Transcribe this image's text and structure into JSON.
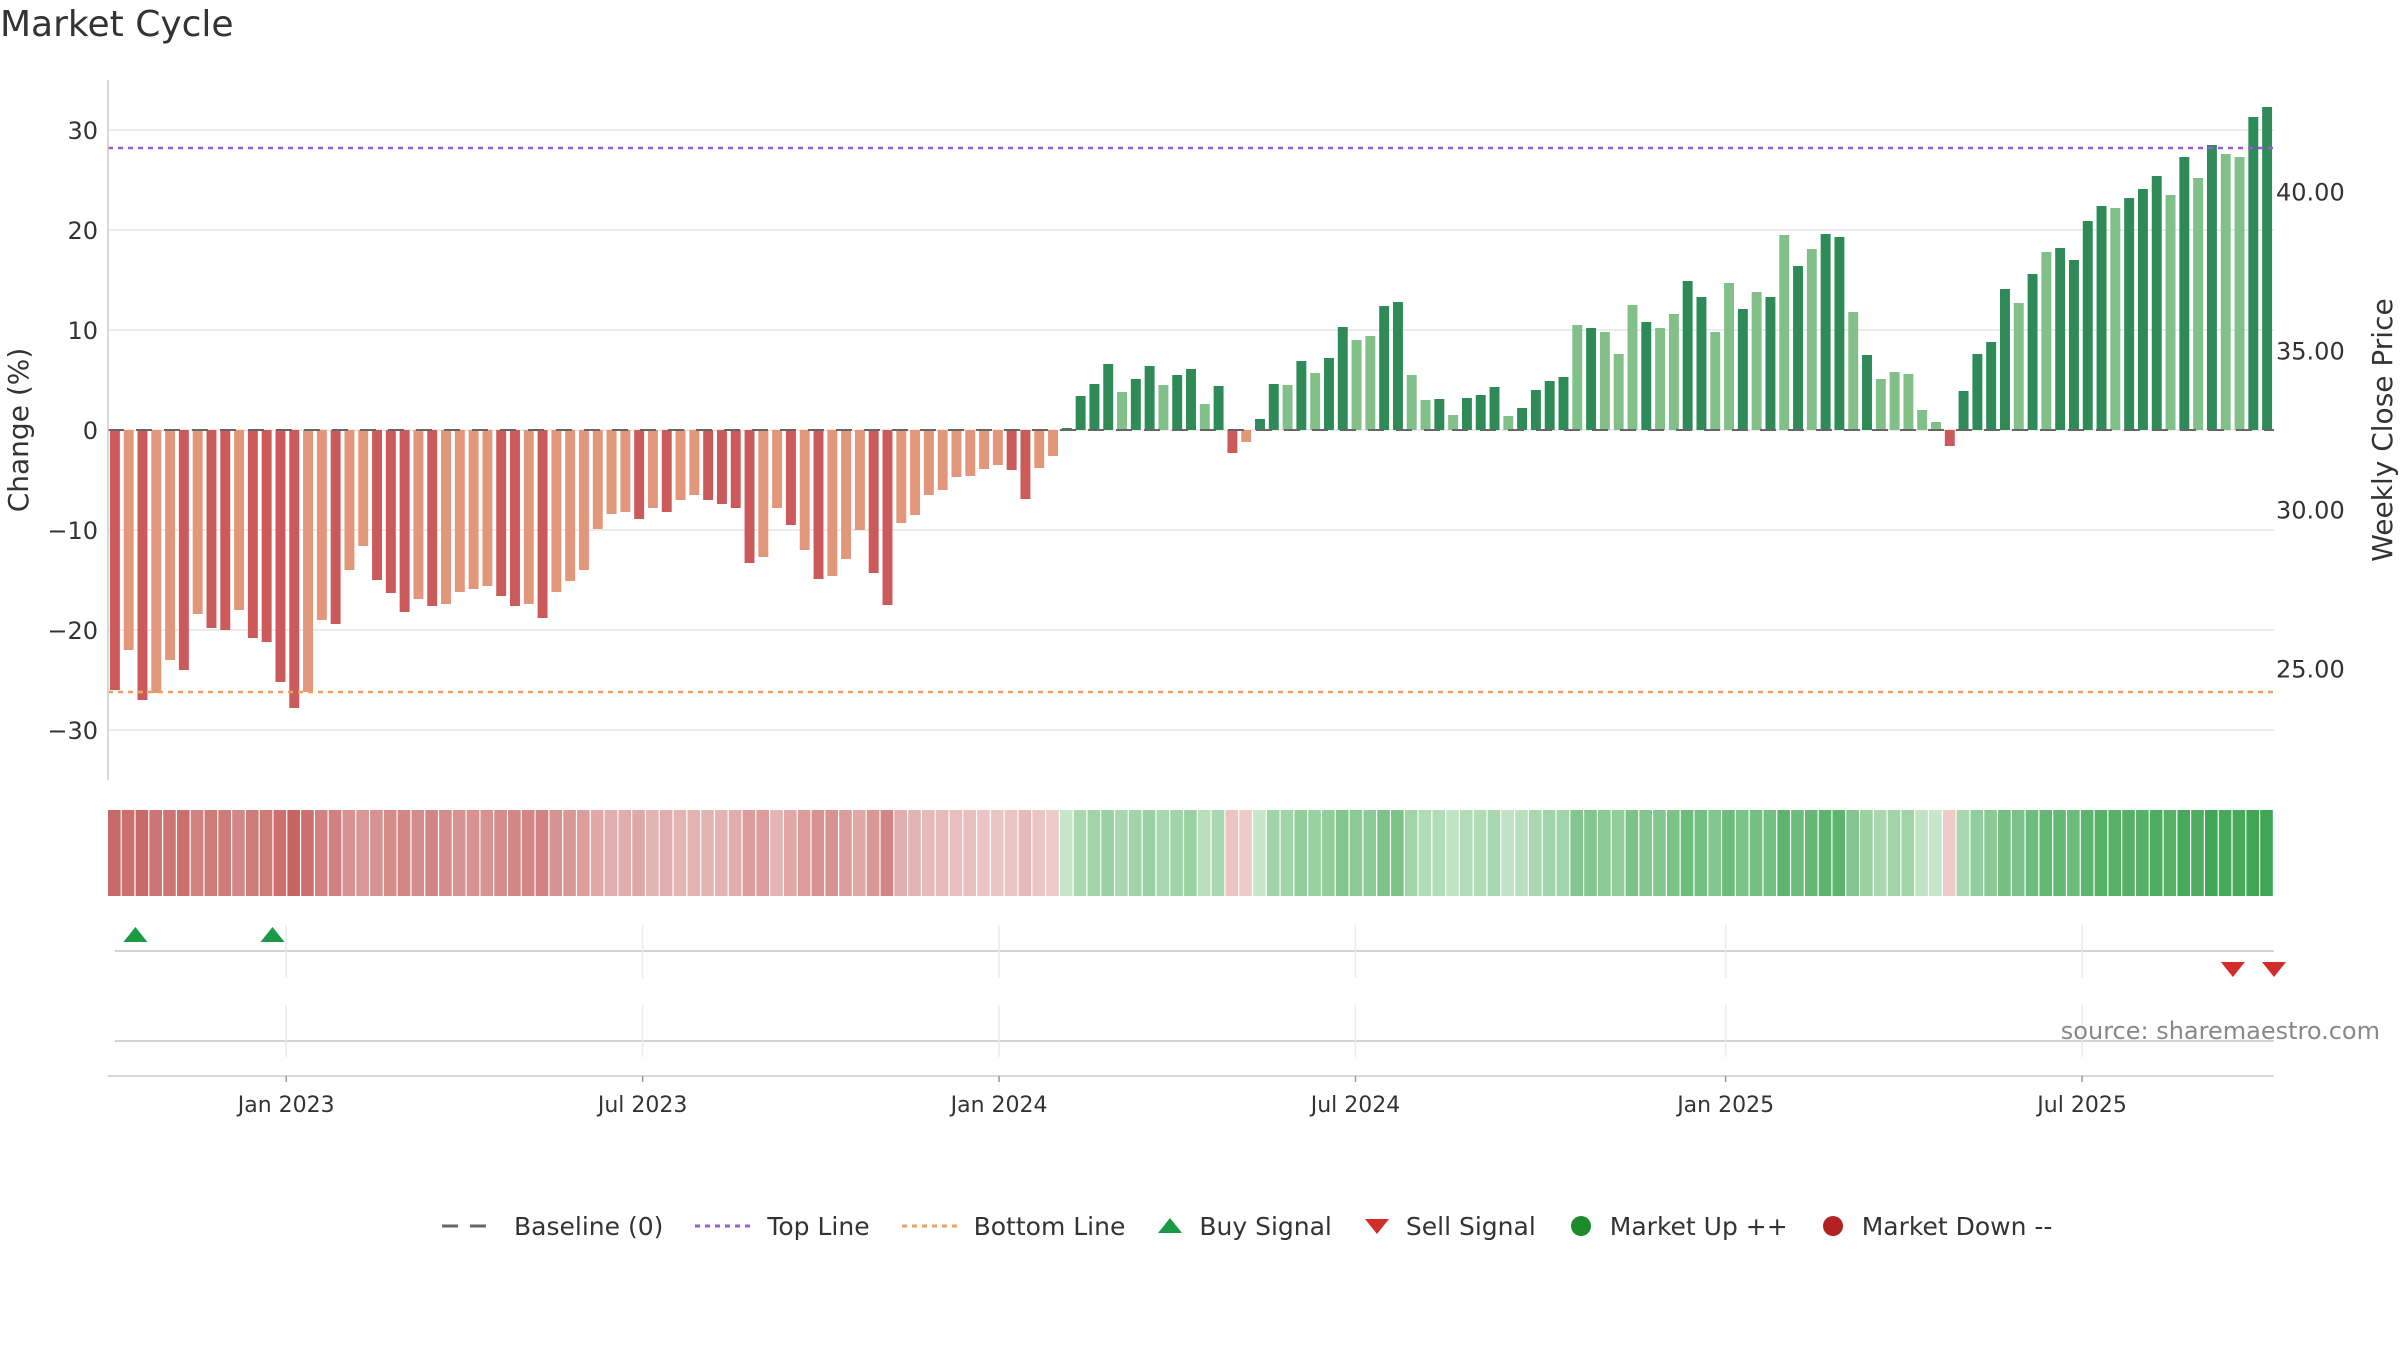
{
  "title": "Market Cycle",
  "source": "source: sharemaestro.com",
  "chart_data": {
    "type": "bar",
    "title": "Market Cycle",
    "ylabel": "Change (%)",
    "y2label": "Weekly Close Price",
    "ylim": [
      -35,
      35
    ],
    "y2lim": [
      21.5,
      43.5
    ],
    "yticks": [
      30,
      20,
      10,
      0,
      -10,
      -20,
      -30
    ],
    "ytick_labels": [
      "30",
      "20",
      "10",
      "0",
      "−10",
      "−20",
      "−30"
    ],
    "y2ticks": [
      40,
      35,
      30,
      25
    ],
    "y2tick_labels": [
      "40.00",
      "35.00",
      "30.00",
      "25.00"
    ],
    "x_start": "2022-10-03",
    "x_end": "2025-10-13",
    "xtick_dates": [
      "2023-01-02",
      "2023-07-03",
      "2024-01-01",
      "2024-07-01",
      "2025-01-06",
      "2025-07-07"
    ],
    "xtick_labels": [
      "Jan 2023",
      "Jul 2023",
      "Jan 2024",
      "Jul 2024",
      "Jan 2025",
      "Jul 2025"
    ],
    "top_line": 28.2,
    "bottom_line": -26.2,
    "baseline": 0,
    "grid": true,
    "legend_position": "bottom-center",
    "colors": {
      "strong_down": "#cc5a5a",
      "weak_down": "#e2977a",
      "strong_up": "#2e8b57",
      "weak_up": "#82c08a",
      "top_line": "#9a5bd4",
      "bottom_line": "#f0a060",
      "buy": "#1a9a45",
      "sell": "#d42b2b",
      "market_up": "#1e8a2a",
      "market_down": "#b22222"
    },
    "values": [
      -26,
      -22,
      -27,
      -26.3,
      -23,
      -24,
      -18.4,
      -19.8,
      -20,
      -18,
      -20.8,
      -21.2,
      -25.2,
      -27.8,
      -26.2,
      -19,
      -19.4,
      -14,
      -11.6,
      -15,
      -16.3,
      -18.2,
      -16.9,
      -17.6,
      -17.4,
      -16.2,
      -15.9,
      -15.6,
      -16.6,
      -17.6,
      -17.4,
      -18.8,
      -16.2,
      -15.1,
      -14,
      -9.9,
      -8.4,
      -8.2,
      -8.9,
      -7.8,
      -8.2,
      -7,
      -6.5,
      -7,
      -7.4,
      -7.8,
      -13.3,
      -12.7,
      -7.8,
      -9.5,
      -12,
      -14.9,
      -14.6,
      -12.9,
      -10,
      -14.3,
      -17.5,
      -9.3,
      -8.5,
      -6.5,
      -6,
      -4.7,
      -4.6,
      -3.9,
      -3.5,
      -4,
      -6.9,
      -3.8,
      -2.6,
      0.2,
      3.4,
      4.6,
      6.6,
      3.8,
      5.1,
      6.4,
      4.5,
      5.5,
      6.1,
      2.6,
      4.4,
      -2.3,
      -1.2,
      1.1,
      4.6,
      4.5,
      6.9,
      5.7,
      7.2,
      10.3,
      9,
      9.4,
      12.4,
      12.8,
      5.5,
      3,
      3.1,
      1.5,
      3.2,
      3.5,
      4.3,
      1.4,
      2.2,
      4,
      4.9,
      5.3,
      10.5,
      10.2,
      9.8,
      7.6,
      12.5,
      10.8,
      10.2,
      11.6,
      14.9,
      13.3,
      9.8,
      14.7,
      12.1,
      13.8,
      13.3,
      19.5,
      16.4,
      18.1,
      19.6,
      19.3,
      11.8,
      7.5,
      5.1,
      5.8,
      5.6,
      2,
      0.8,
      -1.6,
      3.9,
      7.6,
      8.8,
      14.1,
      12.7,
      15.6,
      17.8,
      18.2,
      17,
      20.9,
      22.4,
      22.2,
      23.2,
      24.1,
      25.4,
      23.5,
      27.3,
      25.2,
      28.5,
      27.6,
      27.3,
      31.3,
      32.3
    ],
    "strength": [
      "s",
      "w",
      "s",
      "w",
      "w",
      "s",
      "w",
      "s",
      "s",
      "w",
      "s",
      "s",
      "s",
      "s",
      "w",
      "w",
      "s",
      "w",
      "w",
      "s",
      "s",
      "s",
      "w",
      "s",
      "w",
      "w",
      "w",
      "w",
      "s",
      "s",
      "w",
      "s",
      "w",
      "w",
      "w",
      "w",
      "w",
      "w",
      "s",
      "w",
      "s",
      "w",
      "w",
      "s",
      "s",
      "s",
      "s",
      "w",
      "w",
      "s",
      "w",
      "s",
      "w",
      "w",
      "w",
      "s",
      "s",
      "w",
      "w",
      "w",
      "w",
      "w",
      "w",
      "w",
      "w",
      "s",
      "s",
      "w",
      "w",
      "s",
      "s",
      "s",
      "s",
      "w",
      "s",
      "s",
      "w",
      "s",
      "s",
      "w",
      "s",
      "s",
      "w",
      "s",
      "s",
      "w",
      "s",
      "w",
      "s",
      "s",
      "w",
      "w",
      "s",
      "s",
      "w",
      "w",
      "s",
      "w",
      "s",
      "s",
      "s",
      "w",
      "s",
      "s",
      "s",
      "s",
      "w",
      "s",
      "w",
      "w",
      "w",
      "s",
      "w",
      "w",
      "s",
      "s",
      "w",
      "w",
      "s",
      "w",
      "s",
      "w",
      "s",
      "w",
      "s",
      "s",
      "w",
      "s",
      "w",
      "w",
      "w",
      "w",
      "w",
      "s",
      "s",
      "s",
      "s",
      "s",
      "w",
      "s",
      "w",
      "s",
      "s",
      "s",
      "s",
      "w",
      "s",
      "s",
      "s",
      "w",
      "s",
      "w",
      "s",
      "w",
      "w",
      "s",
      "s"
    ],
    "heat_strip": [
      -0.95,
      -0.9,
      -0.95,
      -0.85,
      -0.85,
      -0.9,
      -0.75,
      -0.8,
      -0.8,
      -0.7,
      -0.8,
      -0.8,
      -0.9,
      -1,
      -0.9,
      -0.75,
      -0.75,
      -0.6,
      -0.55,
      -0.6,
      -0.65,
      -0.7,
      -0.65,
      -0.7,
      -0.65,
      -0.6,
      -0.6,
      -0.6,
      -0.65,
      -0.7,
      -0.7,
      -0.75,
      -0.6,
      -0.55,
      -0.5,
      -0.4,
      -0.35,
      -0.35,
      -0.4,
      -0.3,
      -0.35,
      -0.3,
      -0.3,
      -0.3,
      -0.3,
      -0.35,
      -0.5,
      -0.5,
      -0.3,
      -0.4,
      -0.5,
      -0.6,
      -0.6,
      -0.5,
      -0.4,
      -0.55,
      -0.7,
      -0.35,
      -0.3,
      -0.25,
      -0.25,
      -0.2,
      -0.2,
      -0.15,
      -0.15,
      -0.15,
      -0.25,
      -0.15,
      -0.1,
      0.1,
      0.3,
      0.35,
      0.4,
      0.3,
      0.35,
      0.4,
      0.3,
      0.35,
      0.4,
      0.2,
      0.3,
      -0.15,
      -0.1,
      0.1,
      0.35,
      0.35,
      0.45,
      0.4,
      0.45,
      0.55,
      0.5,
      0.5,
      0.6,
      0.6,
      0.35,
      0.25,
      0.25,
      0.15,
      0.25,
      0.25,
      0.3,
      0.15,
      0.2,
      0.3,
      0.35,
      0.35,
      0.55,
      0.55,
      0.5,
      0.45,
      0.6,
      0.55,
      0.55,
      0.6,
      0.7,
      0.65,
      0.55,
      0.7,
      0.6,
      0.65,
      0.65,
      0.8,
      0.7,
      0.75,
      0.8,
      0.8,
      0.55,
      0.4,
      0.3,
      0.35,
      0.35,
      0.15,
      0.1,
      -0.1,
      0.3,
      0.45,
      0.5,
      0.65,
      0.6,
      0.7,
      0.75,
      0.75,
      0.7,
      0.8,
      0.85,
      0.85,
      0.85,
      0.85,
      0.9,
      0.85,
      0.95,
      0.9,
      1,
      0.95,
      0.95,
      1,
      1
    ],
    "buy_signals": [
      "2022-10-17",
      "2022-12-26"
    ],
    "sell_signals": [
      "2025-09-22",
      "2025-10-13"
    ]
  },
  "legend": [
    {
      "label": "Baseline (0)",
      "icon": "baseline-dash"
    },
    {
      "label": "Top Line",
      "icon": "top-line-dotted"
    },
    {
      "label": "Bottom Line",
      "icon": "bottom-line-dotted"
    },
    {
      "label": "Buy Signal",
      "icon": "up-triangle"
    },
    {
      "label": "Sell Signal",
      "icon": "down-triangle"
    },
    {
      "label": "Market Up ++",
      "icon": "green-dot"
    },
    {
      "label": "Market Down --",
      "icon": "red-dot"
    }
  ]
}
